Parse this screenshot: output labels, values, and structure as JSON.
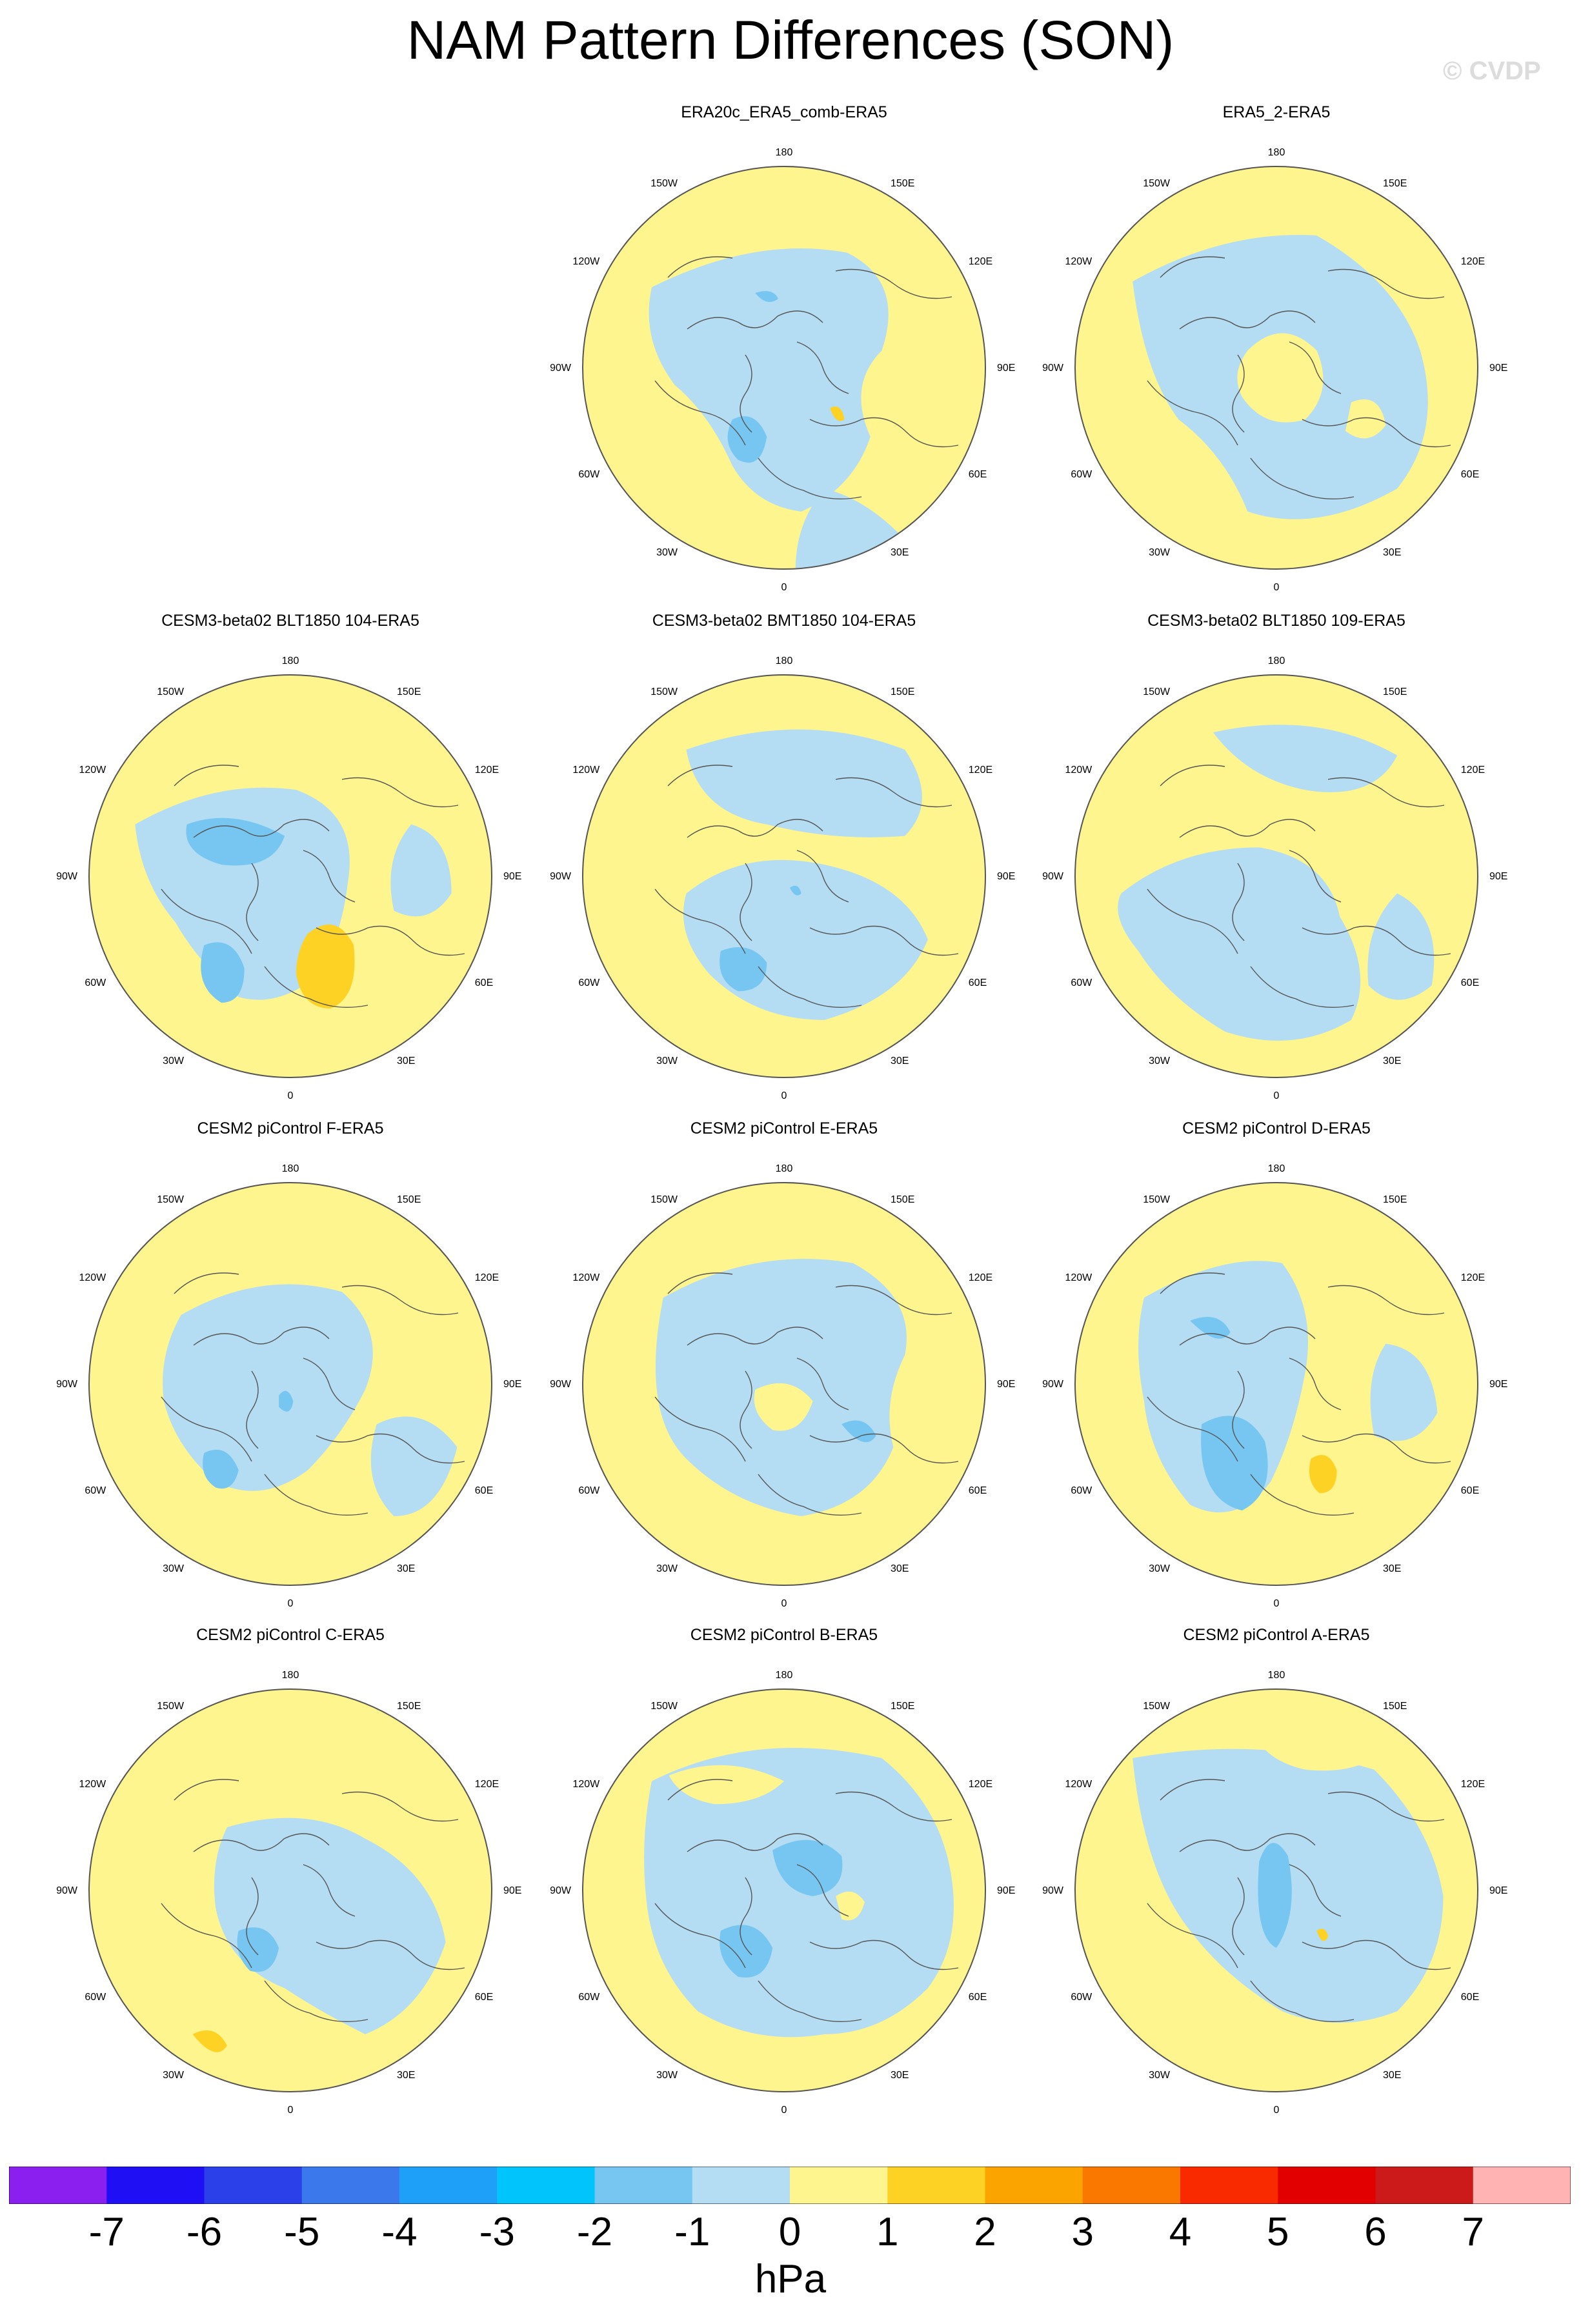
{
  "title": "NAM Pattern Differences (SON)",
  "watermark": "© CVDP",
  "colors": {
    "neg1": "#b4dcf2",
    "neg2": "#76c6f1",
    "pos1": "#fff58e",
    "pos2": "#fdd224",
    "coast": "#555555",
    "rim": "#555555"
  },
  "map_labels": {
    "top": "180",
    "bottom": "0",
    "left": "90W",
    "right": "90E",
    "tl1": "150W",
    "tl2": "120W",
    "tr1": "150E",
    "tr2": "120E",
    "bl1": "60W",
    "bl2": "30W",
    "br1": "60E",
    "br2": "30E"
  },
  "panels": [
    {
      "title": "ERA20c_ERA5_comb-ERA5",
      "row": 0,
      "col": 1
    },
    {
      "title": "ERA5_2-ERA5",
      "row": 0,
      "col": 2
    },
    {
      "title": "CESM3-beta02 BLT1850 104-ERA5",
      "row": 1,
      "col": 0
    },
    {
      "title": "CESM3-beta02 BMT1850 104-ERA5",
      "row": 1,
      "col": 1
    },
    {
      "title": "CESM3-beta02 BLT1850 109-ERA5",
      "row": 1,
      "col": 2
    },
    {
      "title": "CESM2 piControl F-ERA5",
      "row": 2,
      "col": 0
    },
    {
      "title": "CESM2 piControl E-ERA5",
      "row": 2,
      "col": 1
    },
    {
      "title": "CESM2 piControl D-ERA5",
      "row": 2,
      "col": 2
    },
    {
      "title": "CESM2 piControl C-ERA5",
      "row": 3,
      "col": 0
    },
    {
      "title": "CESM2 piControl B-ERA5",
      "row": 3,
      "col": 1
    },
    {
      "title": "CESM2 piControl A-ERA5",
      "row": 3,
      "col": 2
    }
  ],
  "colorbar": {
    "unit": "hPa",
    "ticks": [
      "-7",
      "-6",
      "-5",
      "-4",
      "-3",
      "-2",
      "-1",
      "0",
      "1",
      "2",
      "3",
      "4",
      "5",
      "6",
      "7"
    ],
    "colors": [
      "#8a1ff0",
      "#1e0ff5",
      "#2b40e8",
      "#3a78ec",
      "#1ea0f8",
      "#00c4fb",
      "#76c6f1",
      "#b4dcf2",
      "#fff58e",
      "#fdd224",
      "#fba400",
      "#fb7800",
      "#fa2a00",
      "#e20000",
      "#cc1a1a",
      "#ffb3b3"
    ]
  }
}
